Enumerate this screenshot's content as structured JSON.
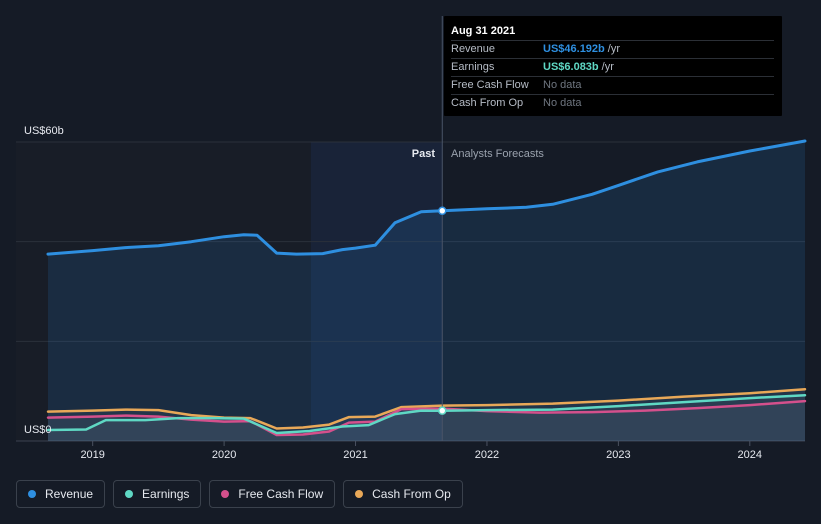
{
  "chart_data": {
    "type": "area",
    "y_axis_labels": [
      "US$60b",
      "US$0"
    ],
    "ylim": [
      0,
      60
    ],
    "x_ticks": [
      "2019",
      "2020",
      "2021",
      "2022",
      "2023",
      "2024"
    ],
    "x_tick_years": [
      2019,
      2020,
      2021,
      2022,
      2023,
      2024
    ],
    "xlim": [
      2018.66,
      2024.42
    ],
    "past_label": "Past",
    "forecast_label": "Analysts Forecasts",
    "divider_x": 2021.66,
    "highlight_start_x": 2020.66,
    "grid": true,
    "series": [
      {
        "name": "Revenue",
        "color": "#2e8fe0",
        "points": [
          [
            2018.66,
            37.5
          ],
          [
            2019.0,
            38.2
          ],
          [
            2019.25,
            38.8
          ],
          [
            2019.5,
            39.2
          ],
          [
            2019.75,
            40.0
          ],
          [
            2020.0,
            41.0
          ],
          [
            2020.15,
            41.4
          ],
          [
            2020.25,
            41.3
          ],
          [
            2020.4,
            37.7
          ],
          [
            2020.55,
            37.5
          ],
          [
            2020.75,
            37.6
          ],
          [
            2020.9,
            38.4
          ],
          [
            2021.0,
            38.7
          ],
          [
            2021.15,
            39.3
          ],
          [
            2021.3,
            43.8
          ],
          [
            2021.5,
            46.0
          ],
          [
            2021.66,
            46.2
          ],
          [
            2022.0,
            46.6
          ],
          [
            2022.3,
            46.9
          ],
          [
            2022.5,
            47.5
          ],
          [
            2022.8,
            49.5
          ],
          [
            2023.0,
            51.3
          ],
          [
            2023.3,
            54.0
          ],
          [
            2023.6,
            56.0
          ],
          [
            2024.0,
            58.2
          ],
          [
            2024.42,
            60.2
          ]
        ]
      },
      {
        "name": "Earnings",
        "color": "#5fd8c4",
        "points": [
          [
            2018.66,
            2.2
          ],
          [
            2018.95,
            2.3
          ],
          [
            2019.1,
            4.2
          ],
          [
            2019.4,
            4.2
          ],
          [
            2019.65,
            4.6
          ],
          [
            2019.9,
            4.6
          ],
          [
            2020.15,
            4.5
          ],
          [
            2020.4,
            1.6
          ],
          [
            2020.65,
            2.0
          ],
          [
            2020.9,
            2.9
          ],
          [
            2021.1,
            3.2
          ],
          [
            2021.3,
            5.4
          ],
          [
            2021.5,
            6.1
          ],
          [
            2021.66,
            6.08
          ],
          [
            2022.0,
            6.2
          ],
          [
            2022.5,
            6.3
          ],
          [
            2023.0,
            7.0
          ],
          [
            2023.5,
            7.8
          ],
          [
            2024.0,
            8.6
          ],
          [
            2024.42,
            9.2
          ]
        ]
      },
      {
        "name": "Free Cash Flow",
        "color": "#d4508c",
        "points": [
          [
            2018.66,
            4.7
          ],
          [
            2019.0,
            4.9
          ],
          [
            2019.25,
            5.1
          ],
          [
            2019.5,
            4.9
          ],
          [
            2019.75,
            4.3
          ],
          [
            2020.0,
            3.9
          ],
          [
            2020.2,
            4.0
          ],
          [
            2020.4,
            1.2
          ],
          [
            2020.6,
            1.3
          ],
          [
            2020.8,
            1.9
          ],
          [
            2020.95,
            3.7
          ],
          [
            2021.15,
            3.9
          ],
          [
            2021.35,
            6.4
          ],
          [
            2021.66,
            6.5
          ],
          [
            2022.0,
            6.0
          ],
          [
            2022.4,
            5.7
          ],
          [
            2022.8,
            5.8
          ],
          [
            2023.2,
            6.1
          ],
          [
            2023.6,
            6.6
          ],
          [
            2024.0,
            7.2
          ],
          [
            2024.42,
            8.0
          ]
        ]
      },
      {
        "name": "Cash From Op",
        "color": "#e8a858",
        "points": [
          [
            2018.66,
            5.9
          ],
          [
            2019.0,
            6.1
          ],
          [
            2019.25,
            6.3
          ],
          [
            2019.5,
            6.2
          ],
          [
            2019.75,
            5.2
          ],
          [
            2020.0,
            4.7
          ],
          [
            2020.2,
            4.6
          ],
          [
            2020.4,
            2.5
          ],
          [
            2020.6,
            2.7
          ],
          [
            2020.8,
            3.3
          ],
          [
            2020.95,
            4.8
          ],
          [
            2021.15,
            4.9
          ],
          [
            2021.35,
            6.8
          ],
          [
            2021.66,
            7.1
          ],
          [
            2022.0,
            7.2
          ],
          [
            2022.5,
            7.5
          ],
          [
            2023.0,
            8.1
          ],
          [
            2023.5,
            8.9
          ],
          [
            2024.0,
            9.6
          ],
          [
            2024.42,
            10.4
          ]
        ]
      }
    ],
    "highlight_points": [
      {
        "series": "Revenue",
        "x": 2021.66,
        "y": 46.192
      },
      {
        "series": "Earnings",
        "x": 2021.66,
        "y": 6.083
      }
    ]
  },
  "tooltip": {
    "date": "Aug 31 2021",
    "rows": [
      {
        "label": "Revenue",
        "value": "US$46.192b",
        "unit": "/yr",
        "color": "#2e8fe0"
      },
      {
        "label": "Earnings",
        "value": "US$6.083b",
        "unit": "/yr",
        "color": "#5fd8c4"
      },
      {
        "label": "Free Cash Flow",
        "value": "No data",
        "unit": "",
        "color": ""
      },
      {
        "label": "Cash From Op",
        "value": "No data",
        "unit": "",
        "color": ""
      }
    ]
  },
  "legend": [
    {
      "label": "Revenue",
      "color": "#2e8fe0"
    },
    {
      "label": "Earnings",
      "color": "#5fd8c4"
    },
    {
      "label": "Free Cash Flow",
      "color": "#d4508c"
    },
    {
      "label": "Cash From Op",
      "color": "#e8a858"
    }
  ]
}
